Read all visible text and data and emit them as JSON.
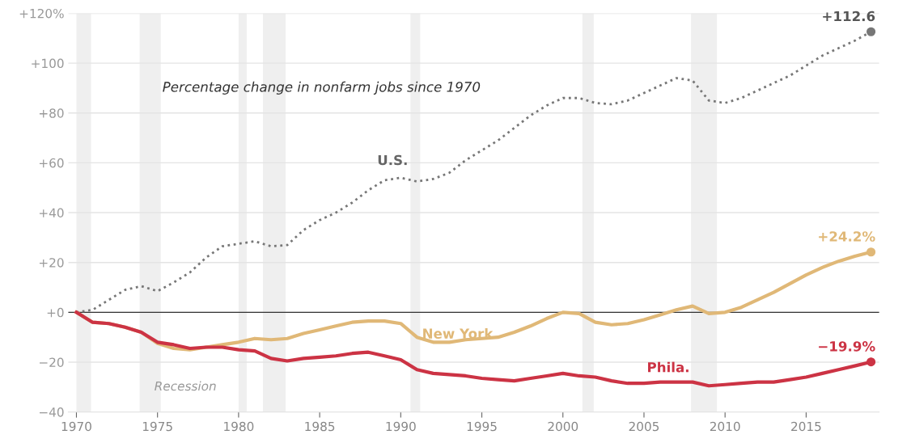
{
  "chart_data": {
    "type": "line",
    "title": "Percentage change in nonfarm jobs since 1970",
    "x": [
      1970,
      1971,
      1972,
      1973,
      1974,
      1975,
      1976,
      1977,
      1978,
      1979,
      1980,
      1981,
      1982,
      1983,
      1984,
      1985,
      1986,
      1987,
      1988,
      1989,
      1990,
      1991,
      1992,
      1993,
      1994,
      1995,
      1996,
      1997,
      1998,
      1999,
      2000,
      2001,
      2002,
      2003,
      2004,
      2005,
      2006,
      2007,
      2008,
      2009,
      2010,
      2011,
      2012,
      2013,
      2014,
      2015,
      2016,
      2017,
      2018,
      2019
    ],
    "series": [
      {
        "name": "U.S.",
        "color": "#777777",
        "line_style": "dotted",
        "values": [
          0,
          1,
          5,
          9,
          10.5,
          8.5,
          12,
          16,
          22,
          26.5,
          27.5,
          28.5,
          26.5,
          27,
          33,
          37,
          40,
          44,
          49,
          53,
          54,
          52.5,
          53.5,
          56,
          61,
          65,
          69,
          74,
          79,
          83,
          86,
          86,
          84,
          83.5,
          85,
          88,
          91,
          94,
          93,
          85,
          84,
          86,
          89,
          92,
          95,
          99,
          103,
          106,
          109,
          112.6
        ],
        "value_labels": [
          null,
          null,
          null,
          null,
          null,
          null,
          null,
          null,
          null,
          null,
          null,
          null,
          null,
          null,
          null,
          null,
          null,
          null,
          null,
          null,
          null,
          null,
          null,
          null,
          null,
          null,
          null,
          null,
          null,
          null,
          null,
          null,
          null,
          null,
          null,
          null,
          null,
          null,
          null,
          null,
          null,
          null,
          null,
          null,
          null,
          null,
          null,
          null,
          null,
          "+112.6"
        ]
      },
      {
        "name": "New York",
        "color": "#e0b877",
        "line_style": "solid",
        "values": [
          0,
          -4,
          -4.5,
          -6,
          -8,
          -12.5,
          -14.5,
          -15,
          -14,
          -13,
          -12,
          -10.5,
          -11,
          -10.5,
          -8.5,
          -7,
          -5.5,
          -4,
          -3.5,
          -3.5,
          -4.5,
          -10,
          -12,
          -12,
          -11,
          -10.5,
          -10,
          -8,
          -5.5,
          -2.5,
          0,
          -0.5,
          -4,
          -5,
          -4.5,
          -3,
          -1,
          1,
          2.5,
          -0.5,
          0,
          2,
          5,
          8,
          11.5,
          15,
          18,
          20.5,
          22.5,
          24.2
        ],
        "value_labels": [
          null,
          null,
          null,
          null,
          null,
          null,
          null,
          null,
          null,
          null,
          null,
          null,
          null,
          null,
          null,
          null,
          null,
          null,
          null,
          null,
          null,
          null,
          null,
          null,
          null,
          null,
          null,
          null,
          null,
          null,
          null,
          null,
          null,
          null,
          null,
          null,
          null,
          null,
          null,
          null,
          null,
          null,
          null,
          null,
          null,
          null,
          null,
          null,
          null,
          "+24.2%"
        ]
      },
      {
        "name": "Phila.",
        "color": "#cc3344",
        "line_style": "solid",
        "values": [
          0,
          -4,
          -4.5,
          -6,
          -8,
          -12,
          -13,
          -14.5,
          -14,
          -14,
          -15,
          -15.5,
          -18.5,
          -19.5,
          -18.5,
          -18,
          -17.5,
          -16.5,
          -16,
          -17.5,
          -19,
          -23,
          -24.5,
          -25,
          -25.5,
          -26.5,
          -27,
          -27.5,
          -26.5,
          -25.5,
          -24.5,
          -25.5,
          -26,
          -27.5,
          -28.5,
          -28.5,
          -28,
          -28,
          -28,
          -29.5,
          -29,
          -28.5,
          -28,
          -28,
          -27,
          -26,
          -24.5,
          -23,
          -21.5,
          -19.9
        ],
        "value_labels": [
          null,
          null,
          null,
          null,
          null,
          null,
          null,
          null,
          null,
          null,
          null,
          null,
          null,
          null,
          null,
          null,
          null,
          null,
          null,
          null,
          null,
          null,
          null,
          null,
          null,
          null,
          null,
          null,
          null,
          null,
          null,
          null,
          null,
          null,
          null,
          null,
          null,
          null,
          null,
          null,
          null,
          null,
          null,
          null,
          null,
          null,
          null,
          null,
          null,
          "−19.9%"
        ]
      }
    ],
    "xlim": [
      1969.5,
      2019.5
    ],
    "xticks": [
      1970,
      1975,
      1980,
      1985,
      1990,
      1995,
      2000,
      2005,
      2010,
      2015
    ],
    "ylim": [
      -40,
      120
    ],
    "yticks": [
      {
        "value": 120,
        "label": "+120%"
      },
      {
        "value": 100,
        "label": "+100"
      },
      {
        "value": 80,
        "label": "+80"
      },
      {
        "value": 60,
        "label": "+60"
      },
      {
        "value": 40,
        "label": "+40"
      },
      {
        "value": 20,
        "label": "+20"
      },
      {
        "value": 0,
        "label": "+0"
      },
      {
        "value": -20,
        "label": "−20"
      },
      {
        "value": -40,
        "label": "−40"
      }
    ],
    "grid": "y",
    "ref_lines": [
      {
        "axis": "y",
        "value": 0,
        "color": "#333333"
      }
    ],
    "bands": [
      {
        "axis": "x",
        "from": 1970.0,
        "to": 1970.9,
        "color": "#efefef"
      },
      {
        "axis": "x",
        "from": 1973.9,
        "to": 1975.2,
        "color": "#efefef"
      },
      {
        "axis": "x",
        "from": 1980.0,
        "to": 1980.5,
        "color": "#efefef"
      },
      {
        "axis": "x",
        "from": 1981.5,
        "to": 1982.9,
        "color": "#efefef"
      },
      {
        "axis": "x",
        "from": 1990.6,
        "to": 1991.2,
        "color": "#efefef"
      },
      {
        "axis": "x",
        "from": 2001.2,
        "to": 2001.9,
        "color": "#efefef"
      },
      {
        "axis": "x",
        "from": 2007.9,
        "to": 2009.5,
        "color": "#efefef"
      }
    ],
    "annotations": [
      "Recession"
    ]
  }
}
